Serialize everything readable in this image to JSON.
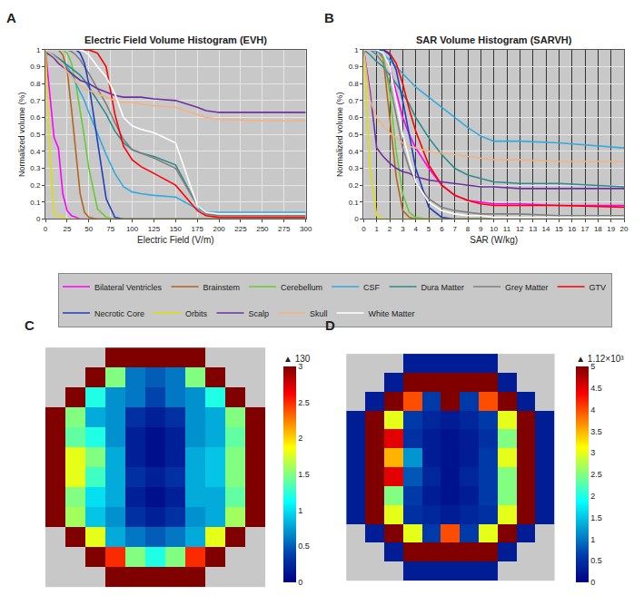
{
  "chart_data": [
    {
      "type": "line",
      "label": "A",
      "title": "Electric Field Volume Histogram (EVH)",
      "x_label": "Electric Field (V/m)",
      "y_label": "Normalized volume (%)",
      "x": [
        0,
        5,
        10,
        15,
        20,
        25,
        30,
        35,
        40,
        45,
        50,
        60,
        70,
        80,
        90,
        100,
        110,
        125,
        150,
        175,
        185,
        200,
        250,
        300
      ],
      "xlim": [
        0,
        300
      ],
      "xticks": [
        0,
        25,
        50,
        75,
        100,
        125,
        150,
        175,
        200,
        225,
        250,
        275,
        300
      ],
      "ylim": [
        0,
        1
      ],
      "yticks": [
        0,
        0.1,
        0.2,
        0.3,
        0.4,
        0.5,
        0.6,
        0.7,
        0.8,
        0.9,
        1
      ],
      "grid": true,
      "legend": "bottom",
      "series": [
        {
          "name": "Bilateral Ventricles",
          "color": "#ff00ff",
          "values": [
            1,
            0.75,
            0.48,
            0.42,
            0.15,
            0.05,
            0.02,
            0.01,
            0,
            0,
            0,
            0,
            0,
            0,
            0,
            0,
            0,
            0,
            0,
            0,
            0,
            0,
            0,
            0
          ]
        },
        {
          "name": "Brainstem",
          "color": "#b5651d",
          "values": [
            1,
            1,
            1,
            1,
            0.97,
            0.88,
            0.65,
            0.4,
            0.15,
            0.04,
            0.01,
            0,
            0,
            0,
            0,
            0,
            0,
            0,
            0,
            0,
            0,
            0,
            0,
            0
          ]
        },
        {
          "name": "Cerebellum",
          "color": "#66cc33",
          "values": [
            1,
            1,
            1,
            1,
            1,
            0.98,
            0.92,
            0.8,
            0.65,
            0.48,
            0.3,
            0.06,
            0.01,
            0,
            0,
            0,
            0,
            0,
            0,
            0,
            0,
            0,
            0,
            0
          ]
        },
        {
          "name": "CSF",
          "color": "#33aadd",
          "values": [
            1,
            0.98,
            0.97,
            0.95,
            0.93,
            0.9,
            0.86,
            0.8,
            0.75,
            0.7,
            0.63,
            0.5,
            0.38,
            0.27,
            0.19,
            0.16,
            0.15,
            0.14,
            0.13,
            0.06,
            0.04,
            0.04,
            0.04,
            0.04
          ]
        },
        {
          "name": "Dura Matter",
          "color": "#2e8b8b",
          "values": [
            0.98,
            0.97,
            0.96,
            0.95,
            0.93,
            0.91,
            0.89,
            0.87,
            0.85,
            0.82,
            0.78,
            0.7,
            0.62,
            0.52,
            0.45,
            0.41,
            0.39,
            0.37,
            0.32,
            0.08,
            0.04,
            0.03,
            0.03,
            0.03
          ]
        },
        {
          "name": "Grey Matter",
          "color": "#808080",
          "values": [
            1,
            1,
            1,
            1,
            1,
            1,
            0.99,
            0.97,
            0.94,
            0.9,
            0.86,
            0.77,
            0.68,
            0.57,
            0.47,
            0.41,
            0.39,
            0.36,
            0.3,
            0.08,
            0.03,
            0.02,
            0.02,
            0.02
          ]
        },
        {
          "name": "GTV",
          "color": "#ff0000",
          "values": [
            1,
            1,
            1,
            1,
            1,
            1,
            1,
            1,
            1,
            1,
            1,
            0.98,
            0.9,
            0.62,
            0.43,
            0.35,
            0.31,
            0.27,
            0.2,
            0.05,
            0.02,
            0.01,
            0.01,
            0.01
          ]
        },
        {
          "name": "Necrotic Core",
          "color": "#1f3fbf",
          "values": [
            1,
            1,
            1,
            1,
            1,
            1,
            1,
            1,
            0.98,
            0.92,
            0.8,
            0.45,
            0.12,
            0.01,
            0,
            0,
            0,
            0,
            0,
            0,
            0,
            0,
            0,
            0
          ]
        },
        {
          "name": "Orbits",
          "color": "#e0e000",
          "values": [
            1,
            0.4,
            0.03,
            0.02,
            0.01,
            0,
            0,
            0,
            0,
            0,
            0,
            0,
            0,
            0,
            0,
            0,
            0,
            0,
            0,
            0,
            0,
            0,
            0,
            0
          ]
        },
        {
          "name": "Scalp",
          "color": "#7030a0",
          "values": [
            1,
            0.97,
            0.95,
            0.92,
            0.9,
            0.88,
            0.86,
            0.84,
            0.82,
            0.81,
            0.8,
            0.77,
            0.75,
            0.73,
            0.72,
            0.72,
            0.72,
            0.71,
            0.7,
            0.66,
            0.64,
            0.63,
            0.63,
            0.63
          ]
        },
        {
          "name": "Skull",
          "color": "#f4b183",
          "values": [
            1,
            0.98,
            0.96,
            0.94,
            0.91,
            0.87,
            0.84,
            0.81,
            0.79,
            0.77,
            0.76,
            0.74,
            0.72,
            0.7,
            0.69,
            0.69,
            0.68,
            0.67,
            0.66,
            0.62,
            0.6,
            0.59,
            0.58,
            0.58
          ]
        },
        {
          "name": "White Matter",
          "color": "#ffffff",
          "values": [
            1,
            1,
            1,
            1,
            1,
            1,
            1,
            1,
            1,
            0.99,
            0.97,
            0.9,
            0.84,
            0.74,
            0.6,
            0.55,
            0.53,
            0.51,
            0.45,
            0.08,
            0.04,
            0.03,
            0.03,
            0.03
          ]
        }
      ]
    },
    {
      "type": "line",
      "label": "B",
      "title": "SAR Volume Histogram (SARVH)",
      "x_label": "SAR (W/kg)",
      "y_label": "Normalized volume (%)",
      "x": [
        0,
        0.5,
        1,
        1.5,
        2,
        2.5,
        3,
        3.5,
        4,
        5,
        6,
        7,
        8,
        9,
        10,
        12,
        15,
        20
      ],
      "xlim": [
        0,
        20
      ],
      "xticks": [
        0,
        1,
        2,
        3,
        4,
        5,
        6,
        7,
        8,
        9,
        10,
        11,
        12,
        13,
        14,
        15,
        16,
        17,
        18,
        19,
        20
      ],
      "ylim": [
        0,
        1
      ],
      "yticks": [
        0,
        0.1,
        0.2,
        0.3,
        0.4,
        0.5,
        0.6,
        0.7,
        0.8,
        0.9,
        1
      ],
      "grid": true,
      "legend": "bottom",
      "series": [
        {
          "name": "Bilateral Ventricles",
          "color": "#ff00ff",
          "values": [
            1,
            1,
            1,
            0.98,
            0.9,
            0.75,
            0.6,
            0.5,
            0.42,
            0.3,
            0.2,
            0.14,
            0.11,
            0.1,
            0.09,
            0.09,
            0.08,
            0.08
          ]
        },
        {
          "name": "Brainstem",
          "color": "#b5651d",
          "values": [
            1,
            1,
            1,
            0.95,
            0.6,
            0.25,
            0.05,
            0.01,
            0,
            0,
            0,
            0,
            0,
            0,
            0,
            0,
            0,
            0
          ]
        },
        {
          "name": "Cerebellum",
          "color": "#66cc33",
          "values": [
            1,
            1,
            1,
            0.97,
            0.75,
            0.4,
            0.15,
            0.04,
            0.01,
            0,
            0,
            0,
            0,
            0,
            0,
            0,
            0,
            0
          ]
        },
        {
          "name": "CSF",
          "color": "#33aadd",
          "values": [
            1,
            1,
            0.99,
            0.97,
            0.94,
            0.9,
            0.86,
            0.82,
            0.78,
            0.72,
            0.66,
            0.6,
            0.54,
            0.49,
            0.46,
            0.46,
            0.45,
            0.42
          ]
        },
        {
          "name": "Dura Matter",
          "color": "#2e8b8b",
          "values": [
            1,
            0.97,
            0.93,
            0.9,
            0.85,
            0.8,
            0.74,
            0.68,
            0.6,
            0.48,
            0.38,
            0.3,
            0.26,
            0.24,
            0.22,
            0.21,
            0.21,
            0.19
          ]
        },
        {
          "name": "Grey Matter",
          "color": "#808080",
          "values": [
            1,
            1,
            0.97,
            0.92,
            0.8,
            0.6,
            0.42,
            0.3,
            0.22,
            0.12,
            0.07,
            0.05,
            0.04,
            0.03,
            0.03,
            0.03,
            0.02,
            0.02
          ]
        },
        {
          "name": "GTV",
          "color": "#ff0000",
          "values": [
            1,
            1,
            1,
            1,
            0.98,
            0.92,
            0.8,
            0.65,
            0.52,
            0.32,
            0.2,
            0.14,
            0.11,
            0.09,
            0.08,
            0.08,
            0.08,
            0.07
          ]
        },
        {
          "name": "Necrotic Core",
          "color": "#1f3fbf",
          "values": [
            1,
            1,
            1,
            1,
            0.97,
            0.88,
            0.7,
            0.5,
            0.3,
            0.07,
            0.01,
            0,
            0,
            0,
            0,
            0,
            0,
            0
          ]
        },
        {
          "name": "Orbits",
          "color": "#e0e000",
          "values": [
            1,
            0.3,
            0.02,
            0,
            0,
            0,
            0,
            0,
            0,
            0,
            0,
            0,
            0,
            0,
            0,
            0,
            0,
            0
          ]
        },
        {
          "name": "Scalp",
          "color": "#7030a0",
          "values": [
            1,
            0.75,
            0.42,
            0.37,
            0.33,
            0.3,
            0.28,
            0.27,
            0.25,
            0.23,
            0.22,
            0.21,
            0.2,
            0.19,
            0.19,
            0.18,
            0.18,
            0.18
          ]
        },
        {
          "name": "Skull",
          "color": "#f4b183",
          "values": [
            1,
            0.7,
            0.6,
            0.55,
            0.51,
            0.48,
            0.45,
            0.43,
            0.42,
            0.4,
            0.39,
            0.38,
            0.37,
            0.36,
            0.35,
            0.35,
            0.34,
            0.34
          ]
        },
        {
          "name": "White Matter",
          "color": "#ffffff",
          "values": [
            1,
            1,
            1,
            0.98,
            0.9,
            0.7,
            0.5,
            0.35,
            0.22,
            0.1,
            0.05,
            0.03,
            0.02,
            0.02,
            0.01,
            0.01,
            0.01,
            0.01
          ]
        }
      ]
    },
    {
      "type": "heatmap",
      "label": "C",
      "tick_labels": false,
      "zlim": [
        0,
        3
      ],
      "zticks": [
        0,
        0.5,
        1,
        1.5,
        2,
        2.5,
        3
      ],
      "colorbar_title": "▲ 130",
      "z": [
        [
          null,
          null,
          null,
          3,
          3,
          3,
          3,
          3,
          null,
          null,
          null
        ],
        [
          null,
          null,
          3,
          1.5,
          0.6,
          0.5,
          0.6,
          1.5,
          3,
          null,
          null
        ],
        [
          null,
          3,
          1.2,
          0.7,
          0.6,
          0.4,
          0.6,
          0.7,
          1.2,
          3,
          null
        ],
        [
          3,
          1.5,
          0.8,
          0.7,
          0.3,
          0.2,
          0.3,
          0.7,
          0.8,
          1.5,
          3
        ],
        [
          3,
          1.4,
          1.2,
          0.7,
          0.2,
          0.1,
          0.2,
          0.7,
          0.8,
          1.4,
          3
        ],
        [
          3,
          1.8,
          1.5,
          0.8,
          0.2,
          0.1,
          0.2,
          0.8,
          0.9,
          1.5,
          3
        ],
        [
          3,
          1.8,
          1.3,
          0.8,
          0.3,
          0.2,
          0.3,
          0.8,
          0.9,
          1.5,
          3
        ],
        [
          3,
          1.5,
          1,
          0.8,
          0.2,
          0.1,
          0.2,
          0.8,
          0.8,
          1.4,
          3
        ],
        [
          3,
          1.6,
          0.9,
          0.7,
          0.3,
          0.2,
          0.3,
          0.7,
          0.8,
          1.6,
          3
        ],
        [
          null,
          3,
          1.8,
          0.8,
          0.6,
          0.5,
          0.6,
          0.8,
          1.8,
          3,
          null
        ],
        [
          null,
          null,
          3,
          2.5,
          1.5,
          1.2,
          1.5,
          2.5,
          3,
          null,
          null
        ],
        [
          null,
          null,
          null,
          3,
          3,
          3,
          3,
          3,
          null,
          null,
          null
        ]
      ]
    },
    {
      "type": "heatmap",
      "label": "D",
      "tick_labels": false,
      "zlim": [
        0,
        5
      ],
      "zticks": [
        0,
        0.5,
        1,
        1.5,
        2,
        2.5,
        3,
        3.5,
        4,
        4.5,
        5
      ],
      "colorbar_title": "▲ 1.12×10³",
      "z": [
        [
          null,
          null,
          null,
          0.3,
          0.3,
          0.3,
          0.3,
          0.3,
          null,
          null,
          null
        ],
        [
          null,
          null,
          0.3,
          5,
          5,
          5,
          5,
          5,
          0.3,
          null,
          null
        ],
        [
          null,
          0.3,
          5,
          4,
          0.6,
          5,
          0.6,
          4,
          5,
          0.3,
          null
        ],
        [
          0.3,
          5,
          3,
          0.6,
          0.4,
          0.3,
          0.4,
          0.6,
          3,
          5,
          0.3
        ],
        [
          0.3,
          5,
          4.5,
          0.5,
          0.3,
          0.2,
          0.3,
          0.5,
          2.5,
          5,
          0.3
        ],
        [
          0.3,
          5,
          3.5,
          1.2,
          0.3,
          0.2,
          0.3,
          0.6,
          3,
          5,
          0.3
        ],
        [
          0.3,
          5,
          4.5,
          0.8,
          0.4,
          0.2,
          0.4,
          0.6,
          2.5,
          5,
          0.3
        ],
        [
          0.3,
          5,
          2.5,
          0.6,
          0.3,
          0.2,
          0.3,
          0.6,
          2.5,
          5,
          0.3
        ],
        [
          0.3,
          5,
          3,
          0.5,
          0.4,
          0.3,
          0.4,
          0.5,
          3,
          5,
          0.3
        ],
        [
          null,
          0.3,
          5,
          3,
          0.6,
          4,
          0.6,
          3,
          5,
          0.3,
          null
        ],
        [
          null,
          null,
          0.3,
          5,
          5,
          5,
          5,
          5,
          0.3,
          null,
          null
        ],
        [
          null,
          null,
          null,
          0.3,
          0.3,
          0.3,
          0.3,
          0.3,
          null,
          null,
          null
        ]
      ]
    }
  ]
}
